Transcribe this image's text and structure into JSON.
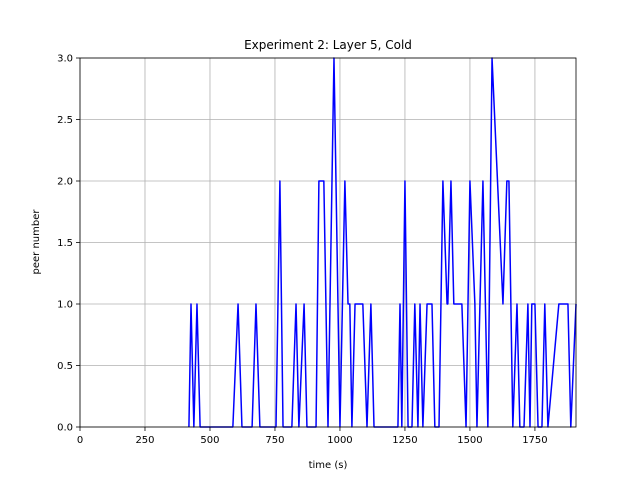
{
  "chart_data": {
    "type": "line",
    "title": "Experiment 2: Layer 5, Cold",
    "x_label": "time (s)",
    "y_label": "peer number",
    "x": [
      419,
      427,
      438,
      450,
      462,
      588,
      608,
      623,
      662,
      677,
      692,
      754,
      769,
      781,
      815,
      831,
      842,
      862,
      873,
      908,
      919,
      938,
      954,
      977,
      1000,
      1019,
      1031,
      1038,
      1046,
      1058,
      1088,
      1104,
      1119,
      1131,
      1223,
      1231,
      1238,
      1250,
      1262,
      1277,
      1288,
      1300,
      1308,
      1319,
      1335,
      1354,
      1365,
      1381,
      1396,
      1412,
      1415,
      1427,
      1438,
      1469,
      1485,
      1500,
      1519,
      1527,
      1550,
      1569,
      1585,
      1627,
      1642,
      1650,
      1665,
      1681,
      1692,
      1708,
      1723,
      1731,
      1738,
      1750,
      1762,
      1777,
      1788,
      1800,
      1842,
      1877,
      1888,
      1908
    ],
    "series": [
      {
        "color": "#0000ff",
        "values": [
          0,
          1,
          0,
          1,
          0,
          0,
          1,
          0,
          0,
          1,
          0,
          0,
          2,
          0,
          0,
          1,
          0,
          1,
          0,
          0,
          2,
          2,
          0,
          3,
          0,
          2,
          1,
          1,
          0,
          1,
          1,
          0,
          1,
          0,
          0,
          1,
          0,
          2,
          0,
          0,
          1,
          0,
          1,
          0,
          1,
          1,
          0,
          0,
          2,
          1,
          1,
          2,
          1,
          1,
          0,
          2,
          1,
          0,
          2,
          0,
          3,
          1,
          2,
          2,
          0,
          1,
          0,
          0,
          1,
          0,
          1,
          1,
          0,
          0,
          1,
          0,
          1,
          1,
          0,
          1
        ]
      }
    ],
    "xlim": [
      0,
      1908
    ],
    "ylim": [
      0,
      3
    ],
    "xticks": [
      0,
      250,
      500,
      750,
      1000,
      1250,
      1500,
      1750
    ],
    "yticks": [
      {
        "value": 0,
        "label": "0.0"
      },
      0.5,
      {
        "value": 1,
        "label": "1.0"
      },
      1.5,
      {
        "value": 2,
        "label": "2.0"
      },
      2.5,
      {
        "value": 3,
        "label": "3.0"
      }
    ],
    "grid": true
  }
}
